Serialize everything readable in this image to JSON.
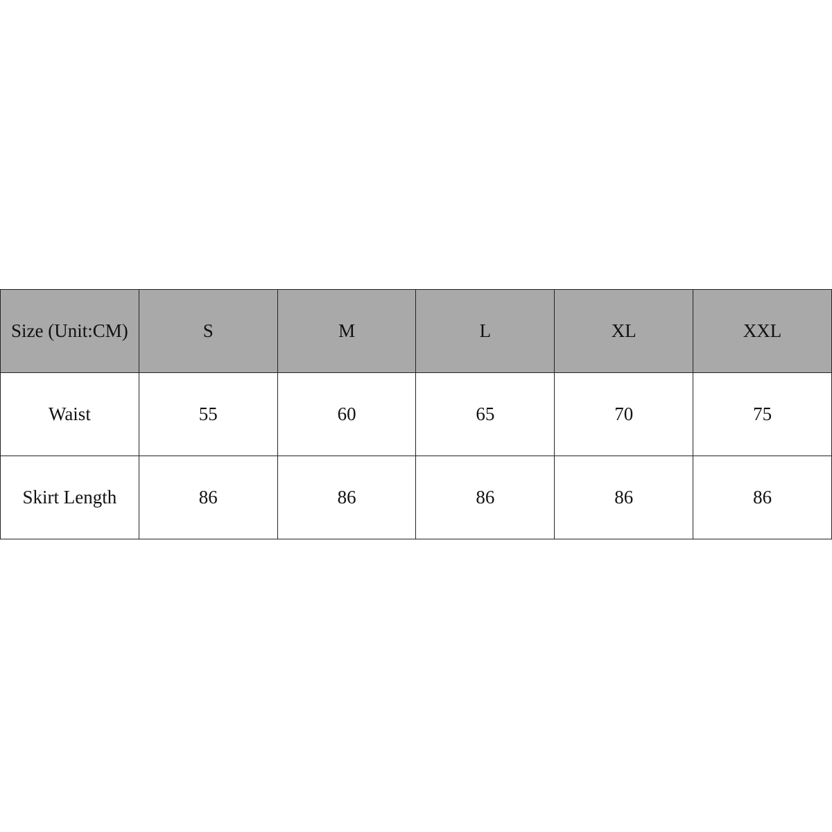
{
  "size_table": {
    "header": [
      "Size (Unit:CM)",
      "S",
      "M",
      "L",
      "XL",
      "XXL"
    ],
    "rows": [
      [
        "Waist",
        "55",
        "60",
        "65",
        "70",
        "75"
      ],
      [
        "Skirt Length",
        "86",
        "86",
        "86",
        "86",
        "86"
      ]
    ],
    "header_color": "#a9a9a9"
  }
}
